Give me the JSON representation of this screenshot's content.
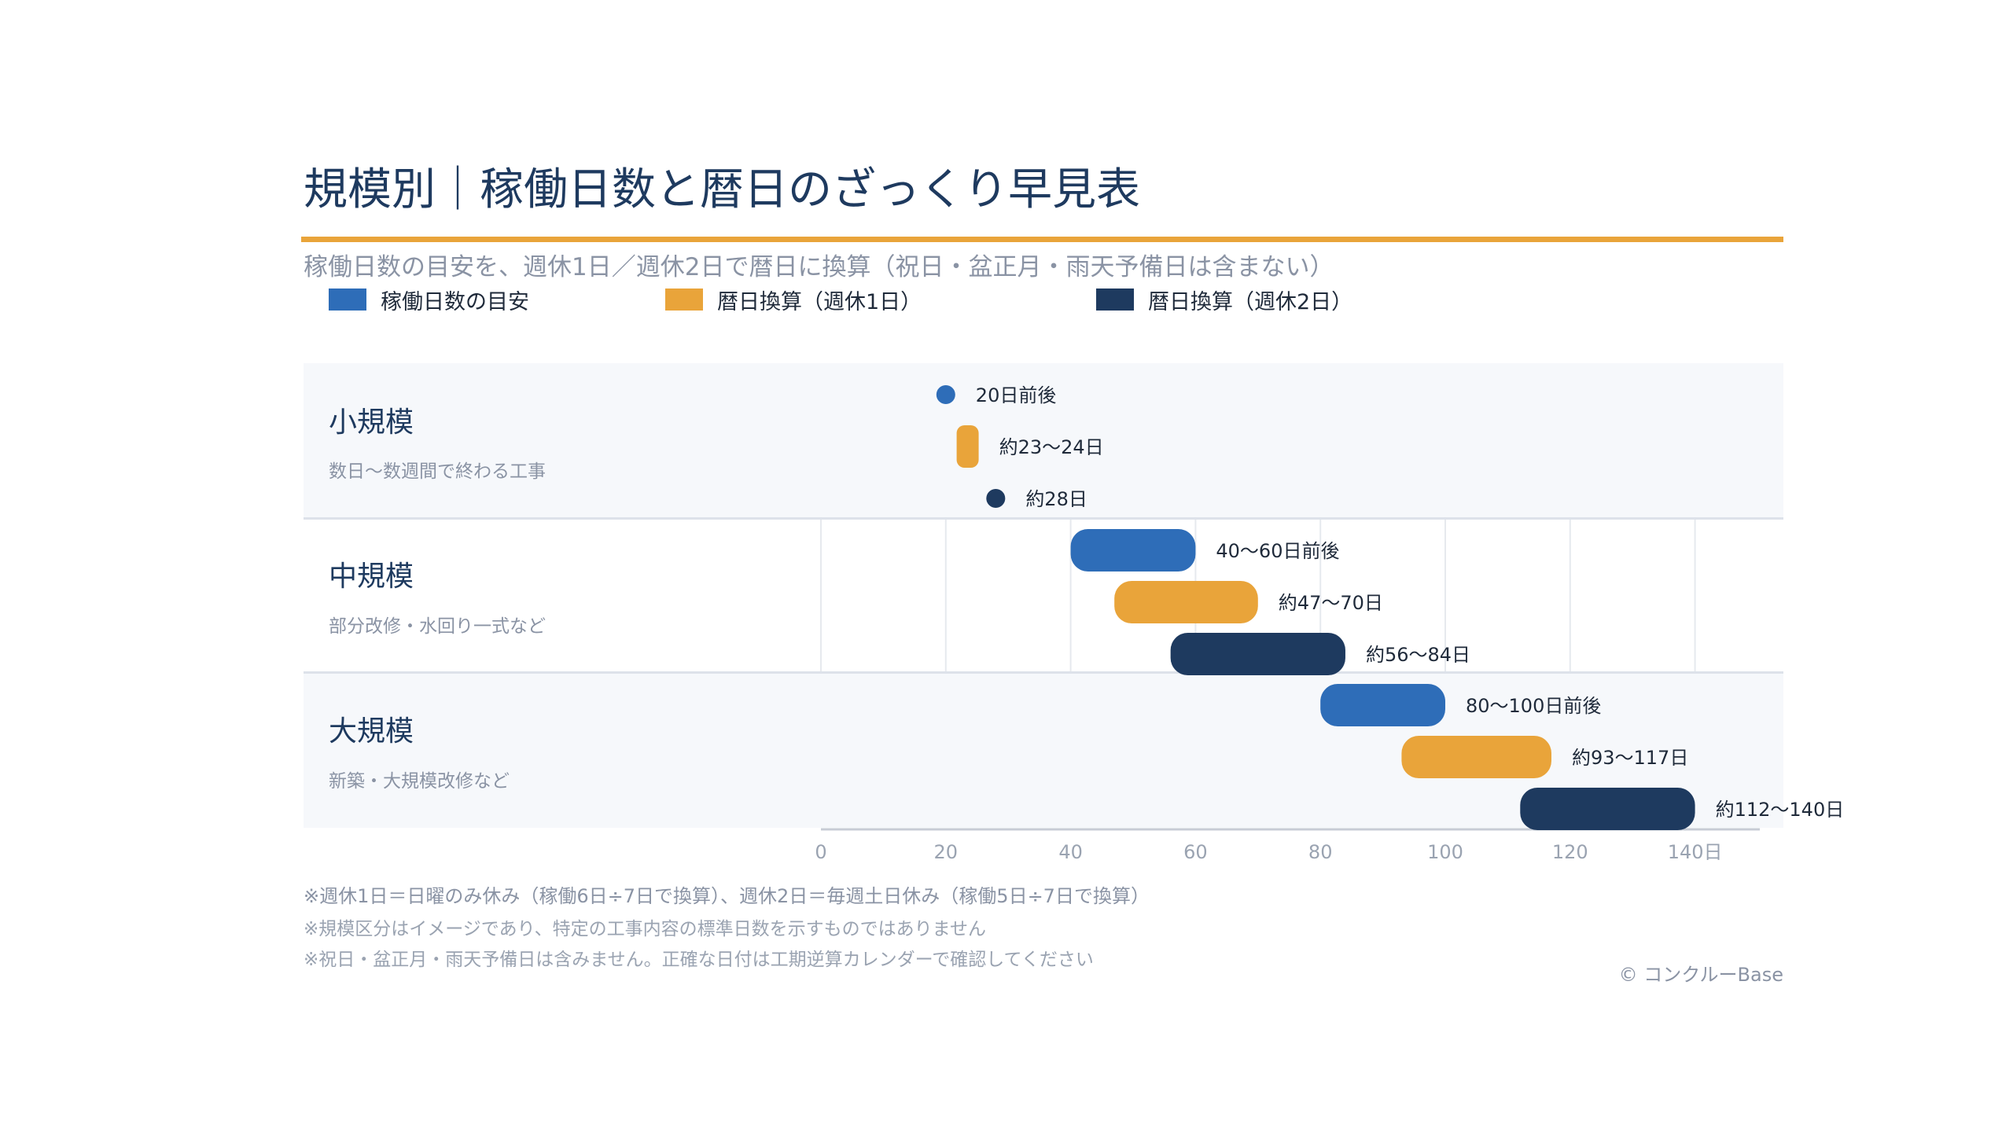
{
  "title": "規模別｜稼働日数と暦日のざっくり早見表",
  "subtitle": "稼働日数の目安を、週休1日／週休2日で暦日に換算（祝日・盆正月・雨天予備日は含まない）",
  "legend": [
    {
      "label": "稼働日数の目安",
      "color": "#2e6db8"
    },
    {
      "label": "暦日換算（週休1日）",
      "color": "#e9a43a"
    },
    {
      "label": "暦日換算（週休2日）",
      "color": "#1e3a5f"
    }
  ],
  "chart_data": {
    "type": "bar",
    "orientation": "horizontal-range",
    "xlim": [
      0,
      150
    ],
    "xticks": [
      0,
      20,
      40,
      60,
      80,
      100,
      120,
      140
    ],
    "xtick_labels": [
      "0",
      "20",
      "40",
      "60",
      "80",
      "100",
      "120",
      "140日"
    ],
    "grid": true,
    "legend_position": "top-left",
    "categories": [
      {
        "name": "小規模",
        "desc": "数日〜数週間で終わる工事"
      },
      {
        "name": "中規模",
        "desc": "部分改修・水回り一式など"
      },
      {
        "name": "大規模",
        "desc": "新築・大規模改修など"
      }
    ],
    "series": [
      {
        "name": "稼働日数の目安",
        "color": "#2e6db8",
        "ranges": [
          [
            20,
            20
          ],
          [
            40,
            60
          ],
          [
            80,
            100
          ]
        ],
        "labels": [
          "20日前後",
          "40〜60日前後",
          "80〜100日前後"
        ]
      },
      {
        "name": "暦日換算（週休1日）",
        "color": "#e9a43a",
        "ranges": [
          [
            23,
            24
          ],
          [
            47,
            70
          ],
          [
            93,
            117
          ]
        ],
        "labels": [
          "約23〜24日",
          "約47〜70日",
          "約93〜117日"
        ]
      },
      {
        "name": "暦日換算（週休2日）",
        "color": "#1e3a5f",
        "ranges": [
          [
            28,
            28
          ],
          [
            56,
            84
          ],
          [
            112,
            140
          ]
        ],
        "labels": [
          "約28日",
          "約56〜84日",
          "約112〜140日"
        ]
      }
    ]
  },
  "notes": [
    "※週休1日＝日曜のみ休み（稼働6日÷7日で換算）、週休2日＝毎週土日休み（稼働5日÷7日で換算）",
    "※規模区分はイメージであり、特定の工事内容の標準日数を示すものではありません",
    "※祝日・盆正月・雨天予備日は含みません。正確な日付は工期逆算カレンダーで確認してください"
  ],
  "credit": "© コンクルーBase"
}
